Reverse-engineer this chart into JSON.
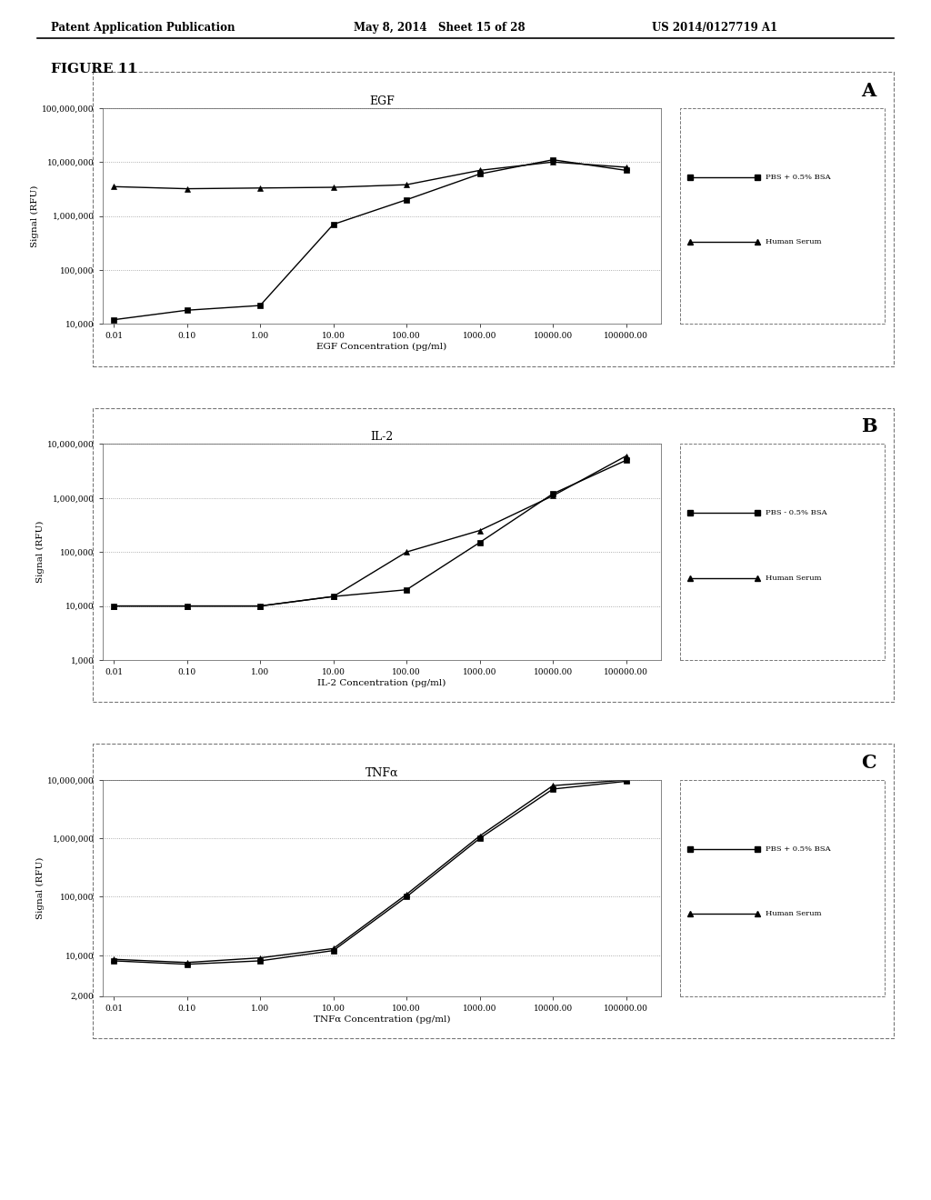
{
  "header_left": "Patent Application Publication",
  "header_mid": "May 8, 2014   Sheet 15 of 28",
  "header_right": "US 2014/0127719 A1",
  "figure_label": "FIGURE 11",
  "panels": [
    {
      "title": "EGF",
      "label": "A",
      "xlabel": "EGF Concentration (pg/ml)",
      "ylabel": "Signal (RFU)",
      "ylim": [
        10000,
        100000000
      ],
      "yticks": [
        10000,
        100000,
        1000000,
        10000000,
        100000000
      ],
      "ytick_labels": [
        "10,000",
        "100,000",
        "1,000,000",
        "10,000,000",
        "100,000,000"
      ],
      "xticks": [
        0.01,
        0.1,
        1.0,
        10.0,
        100.0,
        1000.0,
        10000.0,
        100000.0
      ],
      "xtick_labels": [
        "0.01",
        "0.10",
        "1.00",
        "10.00",
        "100.00",
        "1000.00",
        "10000.00",
        "100000.00"
      ],
      "legend1": "PBS + 0.5% BSA",
      "legend2": "Human Serum",
      "series": [
        {
          "name": "PBS + 0.5% BSA",
          "marker": "s",
          "x": [
            0.01,
            0.1,
            1.0,
            10.0,
            100.0,
            1000.0,
            10000.0,
            100000.0
          ],
          "y": [
            12000,
            18000,
            22000,
            700000,
            2000000,
            6000000,
            11000000,
            7000000
          ]
        },
        {
          "name": "Human Serum",
          "marker": "^",
          "x": [
            0.01,
            0.1,
            1.0,
            10.0,
            100.0,
            1000.0,
            10000.0,
            100000.0
          ],
          "y": [
            3500000,
            3200000,
            3300000,
            3400000,
            3800000,
            7000000,
            10000000,
            8000000
          ]
        }
      ]
    },
    {
      "title": "IL-2",
      "label": "B",
      "xlabel": "IL-2 Concentration (pg/ml)",
      "ylabel": "Signal (RFU)",
      "ylim": [
        1000,
        10000000
      ],
      "yticks": [
        1000,
        10000,
        100000,
        1000000,
        10000000
      ],
      "ytick_labels": [
        "1,000",
        "10,000",
        "100,000",
        "1,000,000",
        "10,000,000"
      ],
      "xticks": [
        0.01,
        0.1,
        1.0,
        10.0,
        100.0,
        1000.0,
        10000.0,
        100000.0
      ],
      "xtick_labels": [
        "0.01",
        "0.10",
        "1.00",
        "10.00",
        "100.00",
        "1000.00",
        "10000.00",
        "100000.00"
      ],
      "legend1": "PBS - 0.5% BSA",
      "legend2": "Human Serum",
      "series": [
        {
          "name": "PBS - 0.5% BSA",
          "marker": "s",
          "x": [
            0.01,
            0.1,
            1.0,
            10.0,
            100.0,
            1000.0,
            10000.0,
            100000.0
          ],
          "y": [
            10000,
            10000,
            10000,
            15000,
            20000,
            150000,
            1200000,
            5000000
          ]
        },
        {
          "name": "Human Serum",
          "marker": "^",
          "x": [
            0.01,
            0.1,
            1.0,
            10.0,
            100.0,
            1000.0,
            10000.0,
            100000.0
          ],
          "y": [
            10000,
            10000,
            10000,
            15000,
            100000,
            250000,
            1100000,
            6000000
          ]
        }
      ]
    },
    {
      "title": "TNFα",
      "label": "C",
      "xlabel": "TNFα Concentration (pg/ml)",
      "ylabel": "Signal (RFU)",
      "ylim": [
        2000,
        10000000
      ],
      "yticks": [
        2000,
        10000,
        100000,
        1000000,
        10000000
      ],
      "ytick_labels": [
        "2,000",
        "10,000",
        "100,000",
        "1,000,000",
        "10,000,000"
      ],
      "xticks": [
        0.01,
        0.1,
        1.0,
        10.0,
        100.0,
        1000.0,
        10000.0,
        100000.0
      ],
      "xtick_labels": [
        "0.01",
        "0.10",
        "1.00",
        "10.00",
        "100.00",
        "1000.00",
        "10000.00",
        "100000.00"
      ],
      "legend1": "PBS + 0.5% BSA",
      "legend2": "Human Serum",
      "series": [
        {
          "name": "PBS + 0.5% BSA",
          "marker": "s",
          "x": [
            0.01,
            0.1,
            1.0,
            10.0,
            100.0,
            1000.0,
            10000.0,
            100000.0
          ],
          "y": [
            8000,
            7000,
            8000,
            12000,
            100000,
            1000000,
            7000000,
            9500000
          ]
        },
        {
          "name": "Human Serum",
          "marker": "^",
          "x": [
            0.01,
            0.1,
            1.0,
            10.0,
            100.0,
            1000.0,
            10000.0,
            100000.0
          ],
          "y": [
            8500,
            7500,
            9000,
            13000,
            110000,
            1100000,
            8000000,
            10000000
          ]
        }
      ]
    }
  ],
  "line_color": "#000000",
  "marker_size": 5,
  "line_width": 1.0,
  "bg_color": "#ffffff",
  "panel_bg": "#ffffff",
  "grid_color": "#999999",
  "grid_style": "dotted"
}
